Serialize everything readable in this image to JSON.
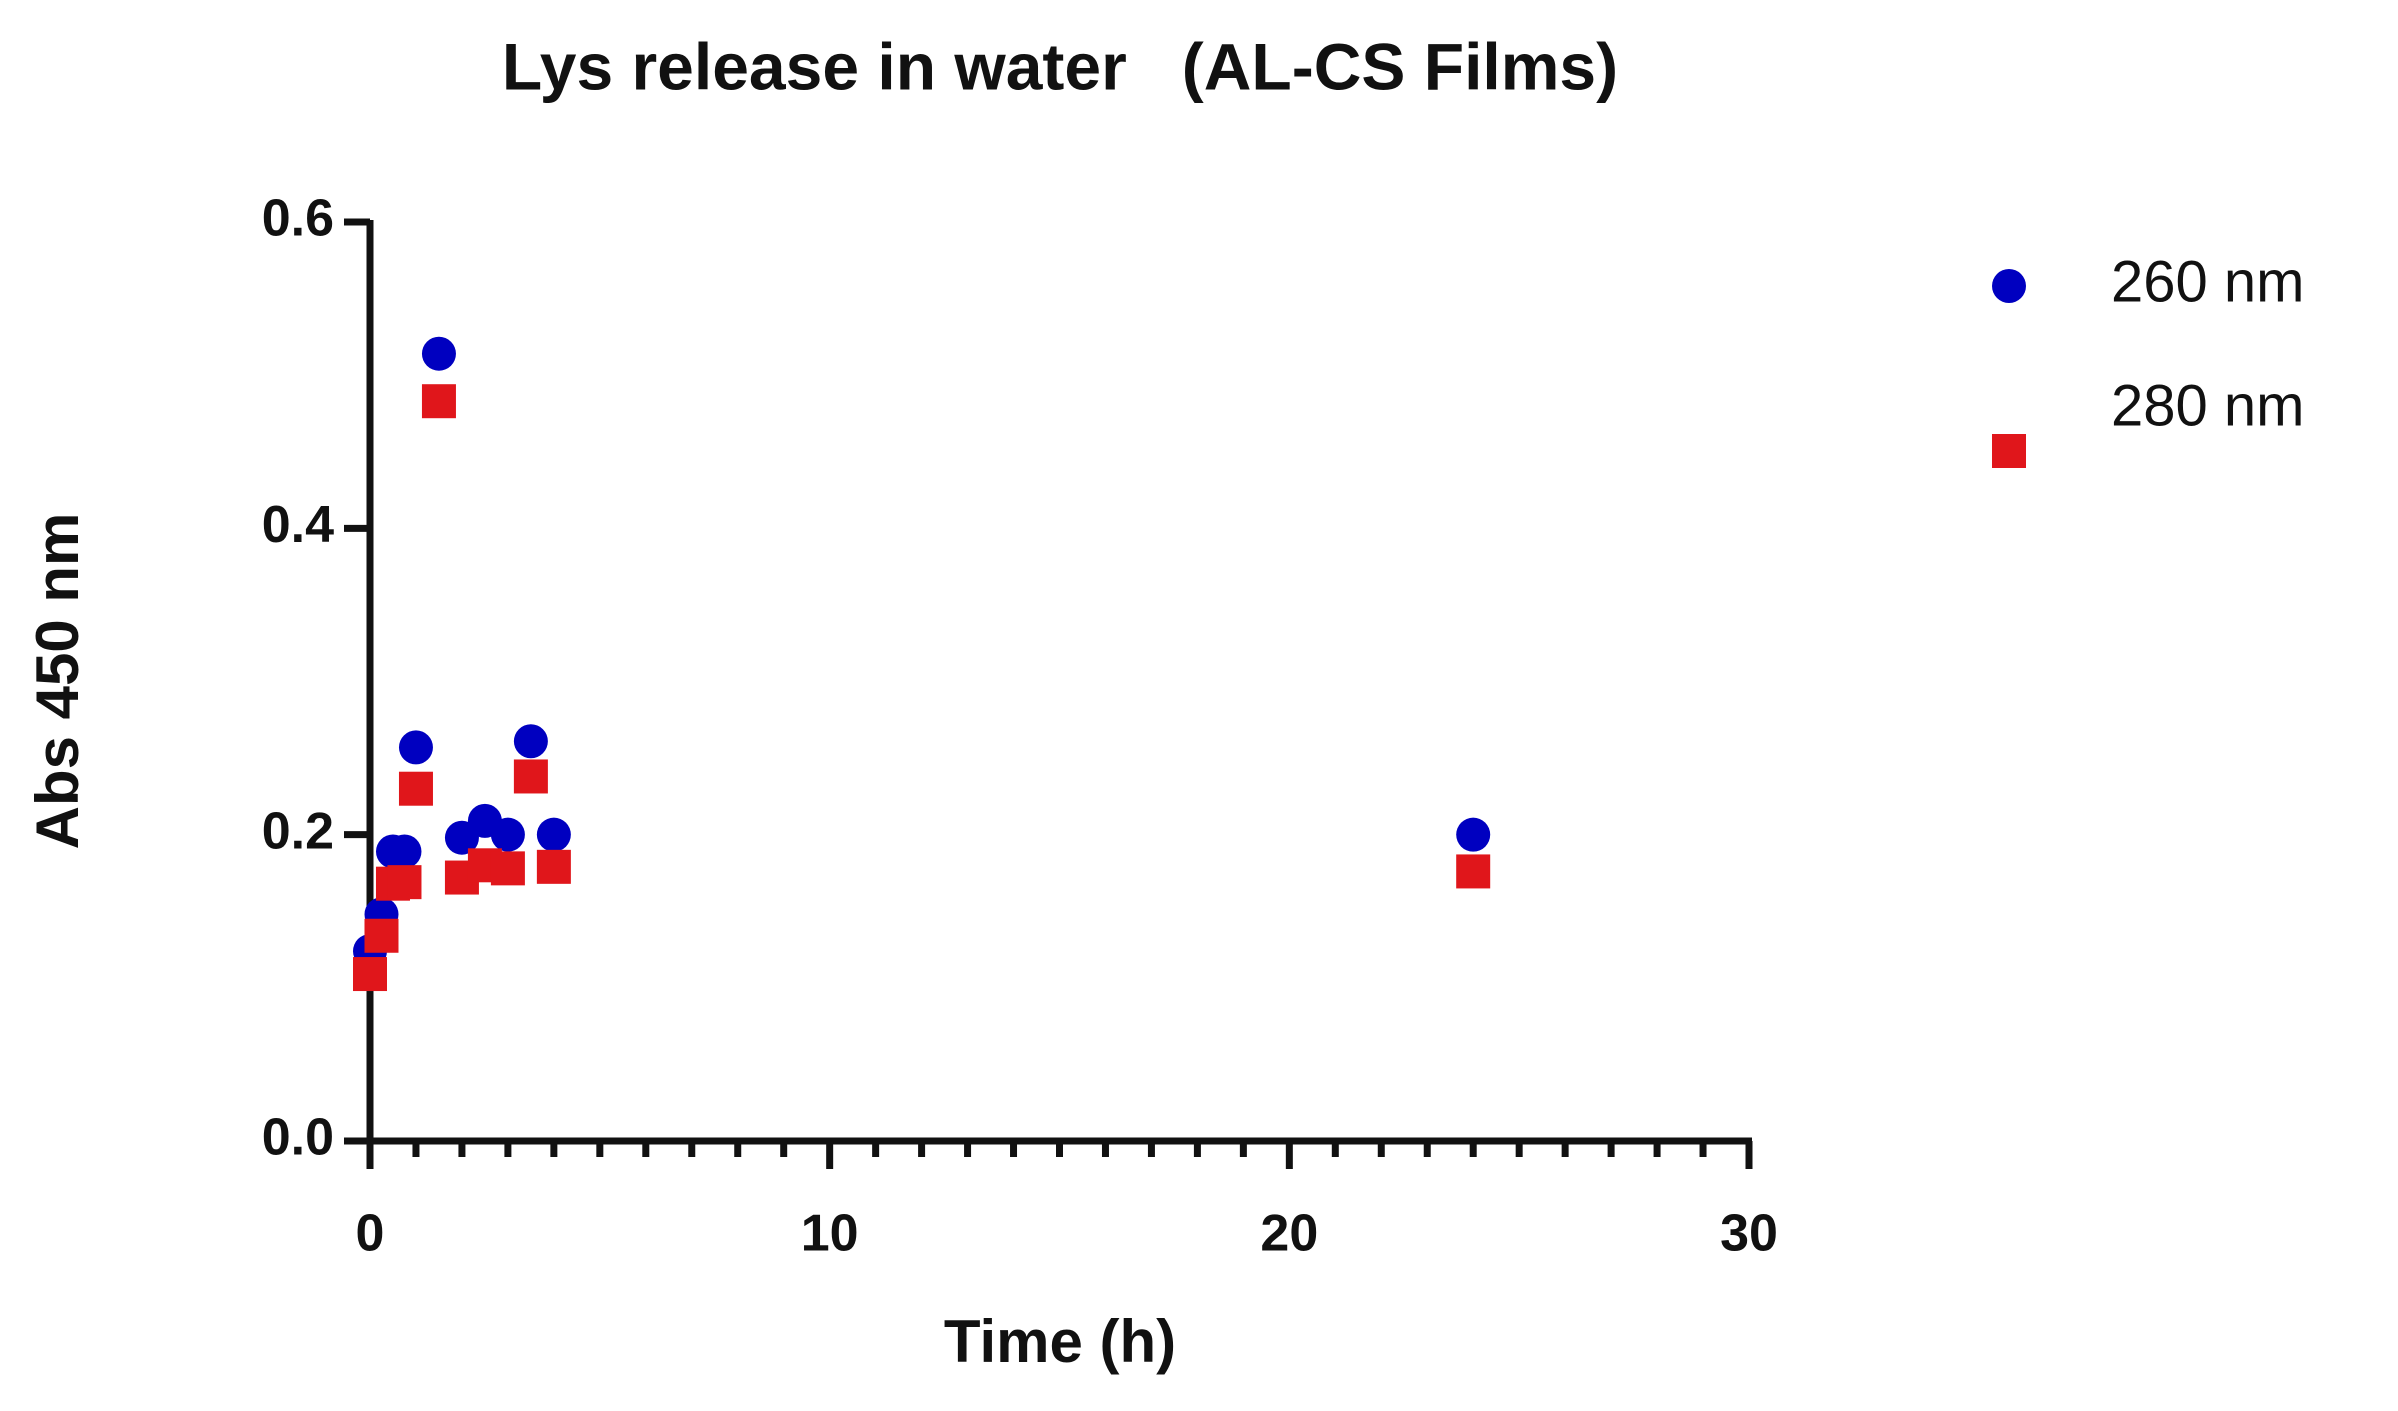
{
  "chart_data": {
    "type": "scatter",
    "title": "Lys release in water   (AL-CS Films)",
    "x_label": "Time (h)",
    "y_label": "Abs 450 nm",
    "x": [
      0,
      0.25,
      0.5,
      0.75,
      1,
      1.5,
      2,
      2.5,
      3,
      3.5,
      4,
      24
    ],
    "series": [
      {
        "name": "260 nm",
        "color": "#0000c0",
        "marker": "circle",
        "values": [
          0.124,
          0.148,
          0.189,
          0.189,
          0.257,
          0.514,
          0.198,
          0.209,
          0.2,
          0.261,
          0.2,
          0.2
        ]
      },
      {
        "name": "280 nm",
        "color": "#e0161b",
        "marker": "square",
        "values": [
          0.109,
          0.134,
          0.168,
          0.169,
          0.23,
          0.483,
          0.172,
          0.18,
          0.178,
          0.238,
          0.179,
          0.176
        ]
      }
    ],
    "xlim": [
      0,
      30
    ],
    "xticks": [
      0,
      10,
      20,
      30
    ],
    "ylim": [
      0,
      0.6
    ],
    "yticks": [
      {
        "value": 0,
        "label": "0.0"
      },
      0.2,
      0.4,
      0.6
    ],
    "legend": "right"
  }
}
